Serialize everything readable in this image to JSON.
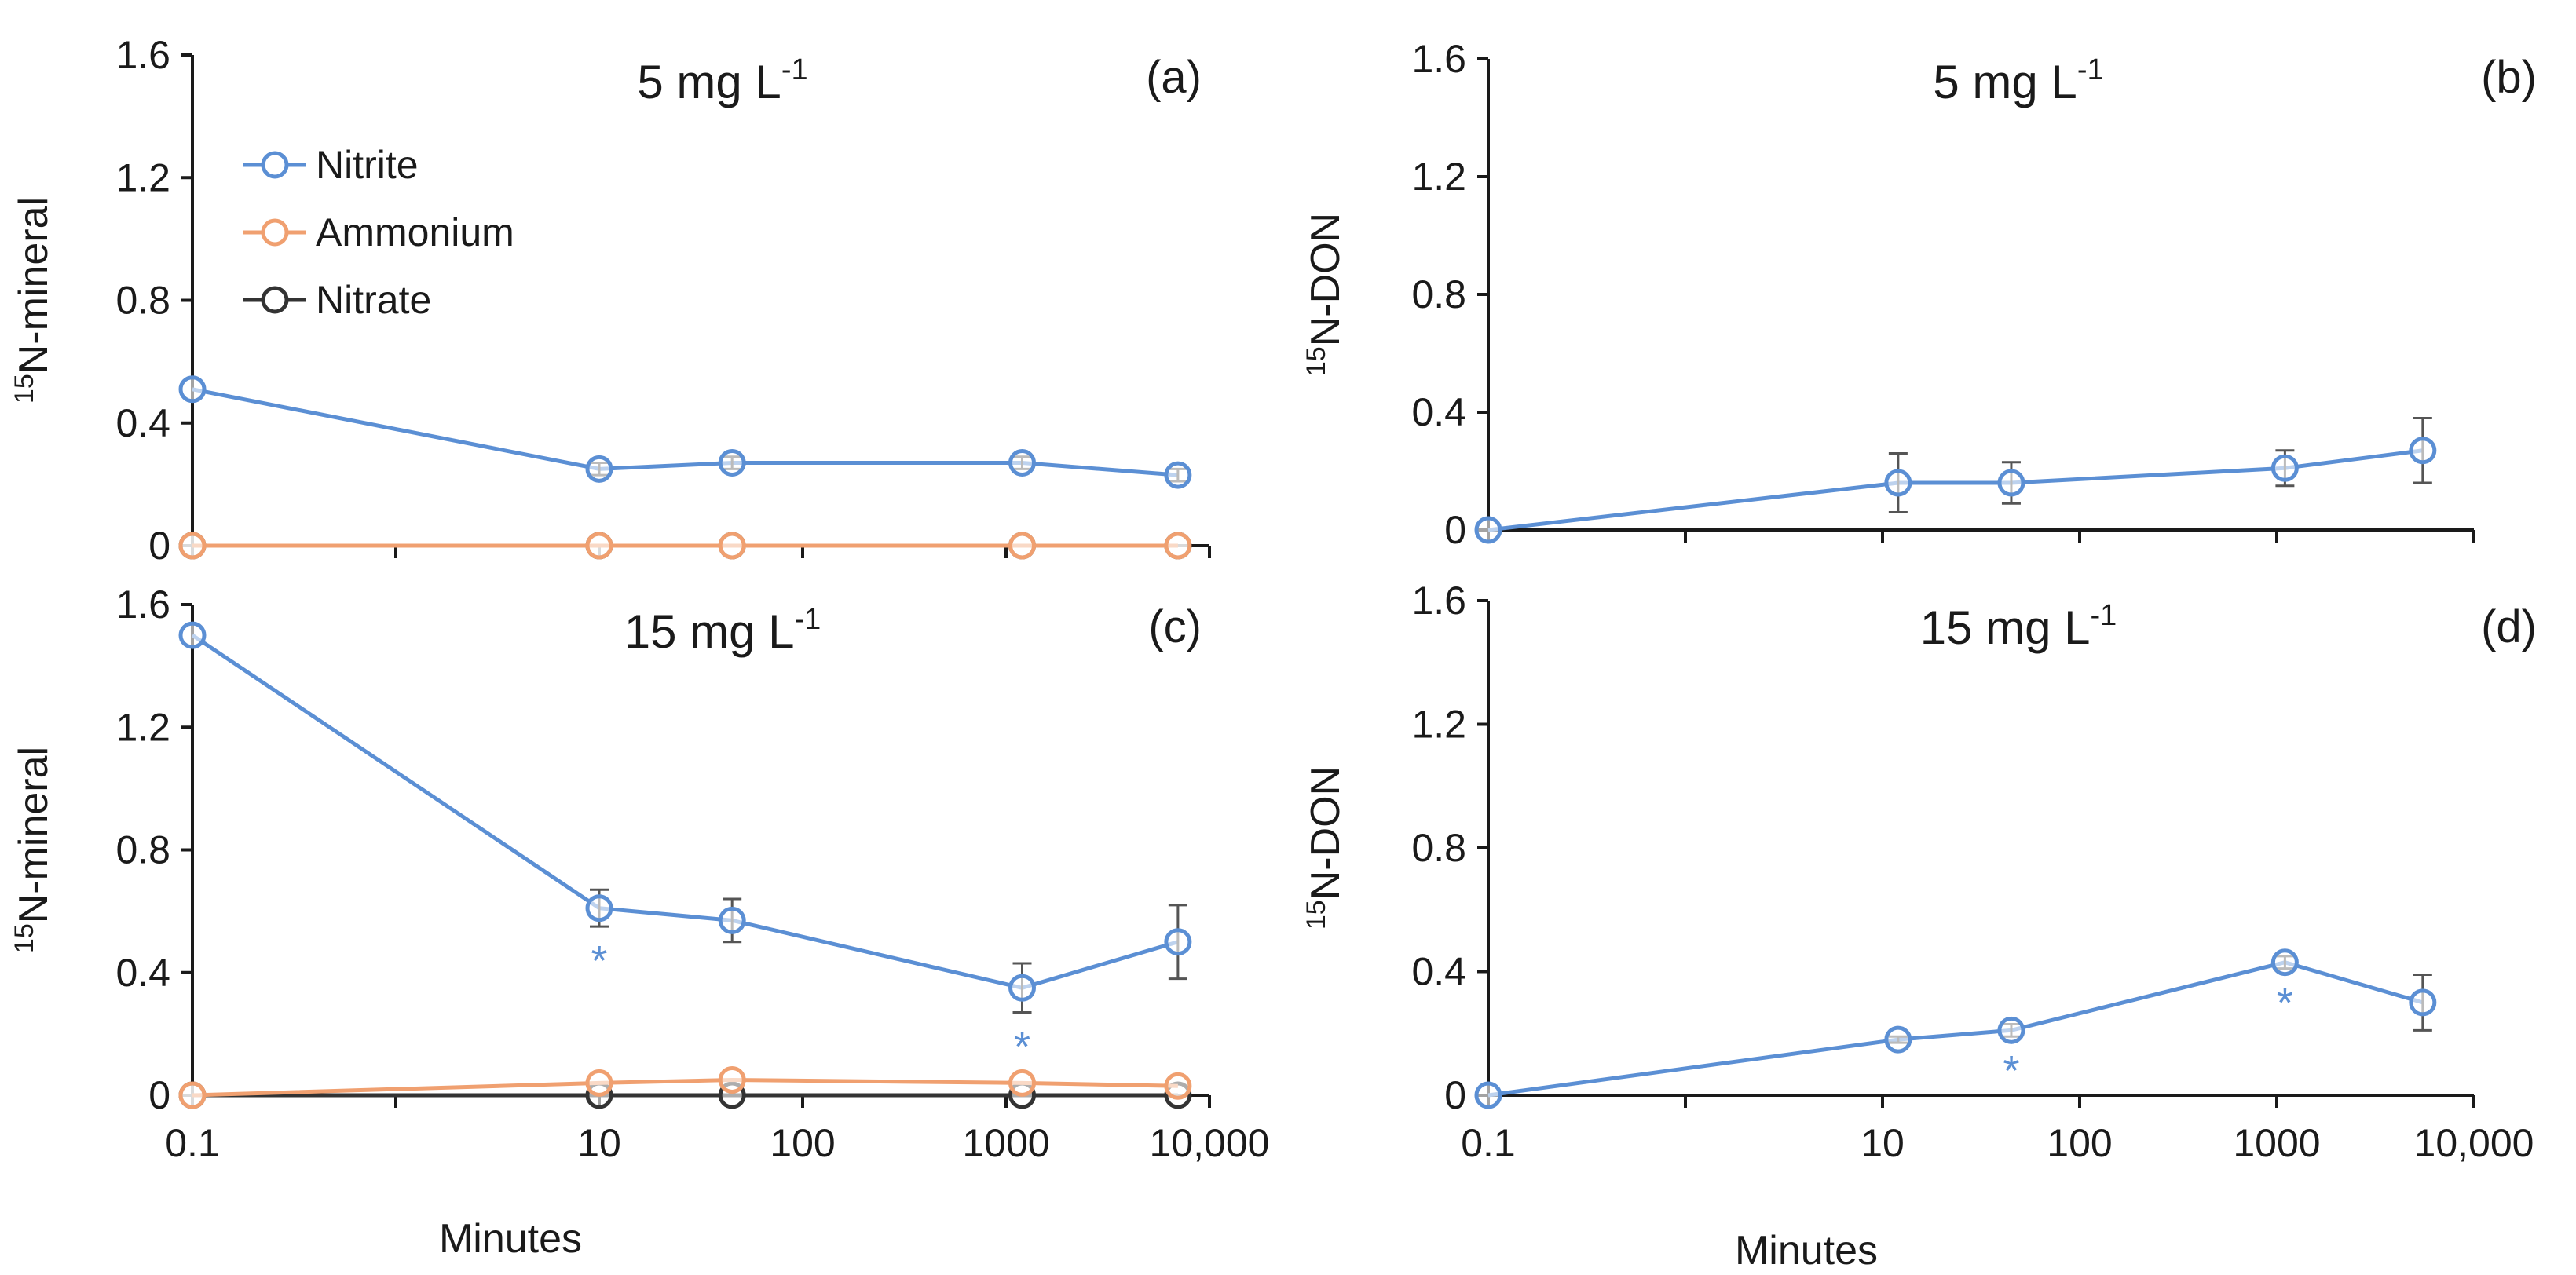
{
  "figure": {
    "x_axis_label": "Minutes",
    "legend": [
      {
        "name": "Nitrite",
        "color": "#5b8fd4"
      },
      {
        "name": "Ammonium",
        "color": "#f0a070"
      },
      {
        "name": "Nitrate",
        "color": "#333333"
      }
    ]
  },
  "chart_data": [
    {
      "id": "a",
      "type": "line",
      "panel_label": "(a)",
      "title": "5 mg L",
      "title_sup": "-1",
      "ylabel_sup": "15",
      "ylabel": "N-mineral",
      "x_scale": "log",
      "xlim": [
        0.1,
        10000
      ],
      "x_ticks": [
        0.1,
        10,
        100,
        1000,
        10000
      ],
      "x_tick_labels": [
        "0.1",
        "10",
        "100",
        "1000",
        "10,000"
      ],
      "show_x_tick_labels": false,
      "ylim": [
        0,
        1.6
      ],
      "y_ticks": [
        0,
        0.4,
        0.8,
        1.2,
        1.6
      ],
      "y_tick_labels": [
        "0",
        "0.4",
        "0.8",
        "1.2",
        "1.6"
      ],
      "legend": true,
      "series": [
        {
          "name": "Nitrite",
          "color": "#5b8fd4",
          "x": [
            0.1,
            10,
            45,
            1200,
            7000
          ],
          "values": [
            0.51,
            0.25,
            0.27,
            0.27,
            0.23
          ],
          "errors": [
            0,
            0.02,
            0.02,
            0.02,
            0.02
          ],
          "significance": [
            false,
            false,
            false,
            false,
            false
          ]
        },
        {
          "name": "Ammonium",
          "color": "#f0a070",
          "x": [
            0.1,
            10,
            45,
            1200,
            7000
          ],
          "values": [
            0,
            0,
            0,
            0,
            0
          ],
          "errors": [
            0,
            0,
            0,
            0,
            0
          ],
          "significance": [
            false,
            false,
            false,
            false,
            false
          ]
        },
        {
          "name": "Nitrate",
          "color": "#333333",
          "x": [
            0.1,
            10,
            45,
            1200,
            7000
          ],
          "values": [
            0,
            0,
            0,
            0,
            0
          ],
          "errors": [
            0,
            0,
            0,
            0,
            0
          ],
          "significance": [
            false,
            false,
            false,
            false,
            false
          ]
        }
      ]
    },
    {
      "id": "b",
      "type": "line",
      "panel_label": "(b)",
      "title": "5 mg L",
      "title_sup": "-1",
      "ylabel_sup": "15",
      "ylabel": "N-DON",
      "x_scale": "log",
      "xlim": [
        0.1,
        10000
      ],
      "x_ticks": [
        0.1,
        10,
        100,
        1000,
        10000
      ],
      "x_tick_labels": [
        "0.1",
        "10",
        "100",
        "1000",
        "10,000"
      ],
      "show_x_tick_labels": false,
      "ylim": [
        0,
        1.6
      ],
      "y_ticks": [
        0,
        0.4,
        0.8,
        1.2,
        1.6
      ],
      "y_tick_labels": [
        "0",
        "0.4",
        "0.8",
        "1.2",
        "1.6"
      ],
      "legend": false,
      "series": [
        {
          "name": "Nitrite",
          "color": "#5b8fd4",
          "x": [
            0.1,
            12,
            45,
            1100,
            5500
          ],
          "values": [
            0,
            0.16,
            0.16,
            0.21,
            0.27
          ],
          "errors": [
            0,
            0.1,
            0.07,
            0.06,
            0.11
          ],
          "significance": [
            false,
            false,
            false,
            false,
            false
          ]
        }
      ]
    },
    {
      "id": "c",
      "type": "line",
      "panel_label": "(c)",
      "title": "15 mg L",
      "title_sup": "-1",
      "ylabel_sup": "15",
      "ylabel": "N-mineral",
      "x_scale": "log",
      "xlim": [
        0.1,
        10000
      ],
      "x_ticks": [
        0.1,
        10,
        100,
        1000,
        10000
      ],
      "x_tick_labels": [
        "0.1",
        "10",
        "100",
        "1000",
        "10,000"
      ],
      "show_x_tick_labels": true,
      "ylim": [
        0,
        1.6
      ],
      "y_ticks": [
        0,
        0.4,
        0.8,
        1.2,
        1.6
      ],
      "y_tick_labels": [
        "0",
        "0.4",
        "0.8",
        "1.2",
        "1.6"
      ],
      "legend": false,
      "series": [
        {
          "name": "Nitrite",
          "color": "#5b8fd4",
          "x": [
            0.1,
            10,
            45,
            1200,
            7000
          ],
          "values": [
            1.5,
            0.61,
            0.57,
            0.35,
            0.5
          ],
          "errors": [
            0,
            0.06,
            0.07,
            0.08,
            0.12
          ],
          "significance": [
            false,
            true,
            false,
            true,
            false
          ]
        },
        {
          "name": "Ammonium",
          "color": "#f0a070",
          "x": [
            0.1,
            10,
            45,
            1200,
            7000
          ],
          "values": [
            0,
            0.04,
            0.05,
            0.04,
            0.03
          ],
          "errors": [
            0,
            0,
            0,
            0,
            0
          ],
          "significance": [
            false,
            false,
            false,
            false,
            false
          ]
        },
        {
          "name": "Nitrate",
          "color": "#333333",
          "x": [
            0.1,
            10,
            45,
            1200,
            7000
          ],
          "values": [
            0,
            0,
            0,
            0,
            0
          ],
          "errors": [
            0,
            0,
            0,
            0,
            0
          ],
          "significance": [
            false,
            false,
            false,
            false,
            false
          ]
        }
      ]
    },
    {
      "id": "d",
      "type": "line",
      "panel_label": "(d)",
      "title": "15 mg L",
      "title_sup": "-1",
      "ylabel_sup": "15",
      "ylabel": "N-DON",
      "x_scale": "log",
      "xlim": [
        0.1,
        10000
      ],
      "x_ticks": [
        0.1,
        10,
        100,
        1000,
        10000
      ],
      "x_tick_labels": [
        "0.1",
        "10",
        "100",
        "1000",
        "10,000"
      ],
      "show_x_tick_labels": true,
      "ylim": [
        0,
        1.6
      ],
      "y_ticks": [
        0,
        0.4,
        0.8,
        1.2,
        1.6
      ],
      "y_tick_labels": [
        "0",
        "0.4",
        "0.8",
        "1.2",
        "1.6"
      ],
      "legend": false,
      "series": [
        {
          "name": "Nitrite",
          "color": "#5b8fd4",
          "x": [
            0.1,
            12,
            45,
            1100,
            5500
          ],
          "values": [
            0,
            0.18,
            0.21,
            0.43,
            0.3
          ],
          "errors": [
            0,
            0.01,
            0.02,
            0.02,
            0.09
          ],
          "significance": [
            false,
            false,
            true,
            true,
            false
          ]
        }
      ]
    }
  ]
}
